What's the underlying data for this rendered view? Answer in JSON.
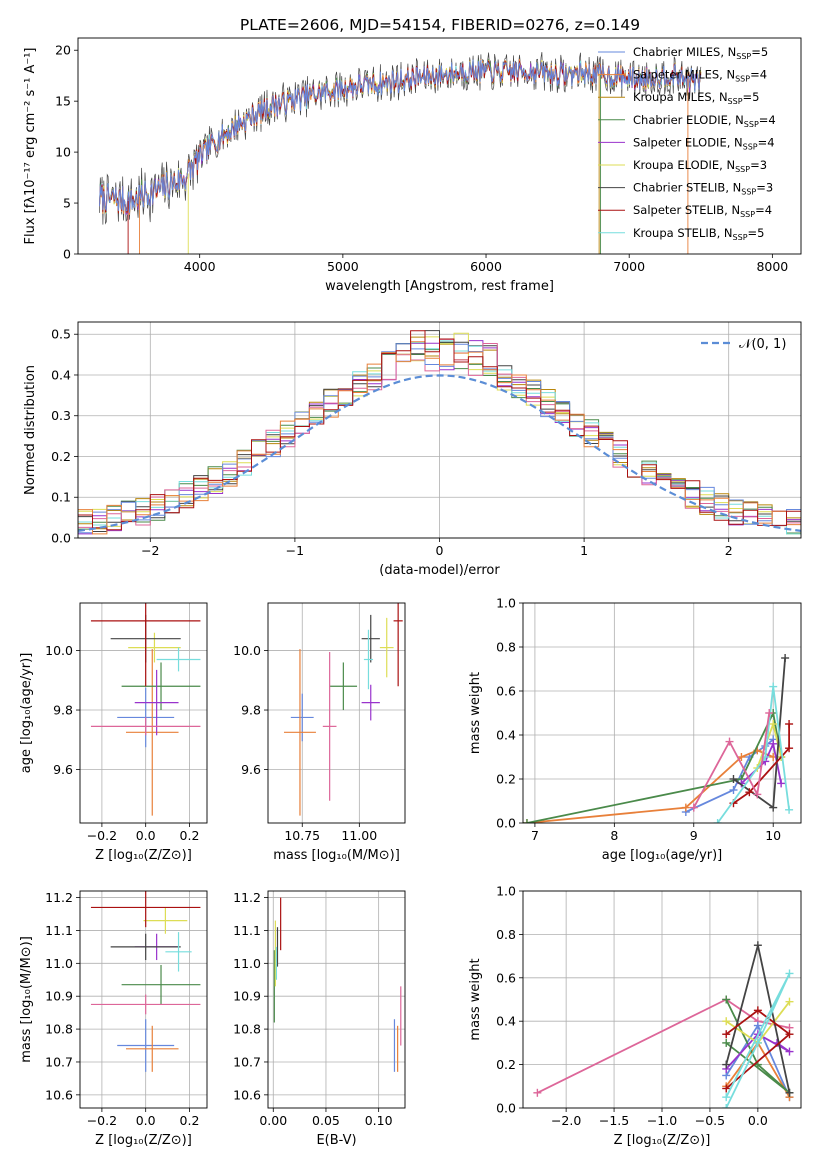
{
  "title": "PLATE=2606, MJD=54154, FIBERID=0276, z=0.149",
  "colors": {
    "series": [
      "#6688dd",
      "#e8803a",
      "#b8860b",
      "#4a8a4a",
      "#9933cc",
      "#dddd55",
      "#444444",
      "#aa1111",
      "#77dddd",
      "#dd6699"
    ],
    "grid": "#b0b0b0",
    "gauss": "#5b8dd6"
  },
  "chart_data": [
    {
      "id": "spectrum",
      "type": "line",
      "xlabel": "wavelength [Angstrom, rest frame]",
      "ylabel": "Flux [fλ10⁻¹⁷ erg cm⁻² s⁻¹ A⁻¹]",
      "xlim": [
        3150,
        8200
      ],
      "ylim": [
        0,
        21.2
      ],
      "xticks": [
        4000,
        5000,
        6000,
        7000,
        8000
      ],
      "yticks": [
        0,
        5,
        10,
        15,
        20
      ],
      "grid": false,
      "legend_position": "top-right",
      "trend": {
        "x": [
          3300,
          3500,
          3700,
          3900,
          4000,
          4100,
          4300,
          4500,
          4700,
          4900,
          5100,
          5300,
          5500,
          5700,
          5900,
          6100,
          6300,
          6500,
          6700,
          6900,
          7100,
          7300,
          7500
        ],
        "y": [
          5.5,
          5.2,
          6.2,
          7.5,
          9.5,
          11.0,
          13.0,
          14.5,
          15.3,
          16.0,
          16.5,
          16.8,
          17.3,
          17.6,
          18.0,
          17.8,
          18.0,
          17.6,
          17.8,
          17.4,
          17.2,
          17.6,
          16.8
        ]
      },
      "series": [
        {
          "label": "Chabrier MILES, N<sub>SSP</sub>=5"
        },
        {
          "label": "Salpeter MILES, N<sub>SSP</sub>=4"
        },
        {
          "label": "Kroupa MILES, N<sub>SSP</sub>=5"
        },
        {
          "label": "Chabrier ELODIE, N<sub>SSP</sub>=4"
        },
        {
          "label": "Salpeter ELODIE, N<sub>SSP</sub>=4"
        },
        {
          "label": "Kroupa ELODIE, N<sub>SSP</sub>=3"
        },
        {
          "label": "Chabrier STELIB, N<sub>SSP</sub>=3"
        },
        {
          "label": "Salpeter STELIB, N<sub>SSP</sub>=4"
        },
        {
          "label": "Kroupa STELIB, N<sub>SSP</sub>=5"
        }
      ]
    },
    {
      "id": "residuals",
      "type": "bar",
      "xlabel": "(data-model)/error",
      "ylabel": "Normed distribution",
      "xlim": [
        -2.5,
        2.5
      ],
      "ylim": [
        0,
        0.53
      ],
      "xticks": [
        -2,
        -1,
        0,
        1,
        2
      ],
      "yticks": [
        0.0,
        0.1,
        0.2,
        0.3,
        0.4,
        0.5
      ],
      "grid": true,
      "legend_position": "top-right",
      "gaussian_label": "𝒩(0, 1)",
      "bin_width": 0.1
    },
    {
      "id": "age-vs-Z",
      "type": "scatter",
      "xlabel": "Z [log₁₀(Z/Z⊙)]",
      "ylabel": "age  [log₁₀(age/yr)]",
      "xlim": [
        -0.3,
        0.28
      ],
      "ylim": [
        9.42,
        10.16
      ],
      "xticks": [
        -0.2,
        0.0,
        0.2
      ],
      "xtick_labels": [
        "−0.2",
        "0.0",
        "0.2"
      ],
      "yticks": [
        9.6,
        9.8,
        10.0
      ],
      "ytick_labels": [
        "9.6",
        "9.8",
        "10.0"
      ],
      "grid": true,
      "points": [
        {
          "c": 0,
          "x": 0.0,
          "y": 9.775,
          "xerr": 0.13,
          "yerr": 0.1
        },
        {
          "c": 1,
          "x": 0.03,
          "y": 9.725,
          "xerr": 0.12,
          "yerr": 0.28
        },
        {
          "c": 3,
          "x": 0.07,
          "y": 9.88,
          "xerr": 0.18,
          "yerr": 0.08
        },
        {
          "c": 4,
          "x": 0.05,
          "y": 9.825,
          "xerr": 0.1,
          "yerr": 0.11
        },
        {
          "c": 5,
          "x": 0.04,
          "y": 10.01,
          "xerr": 0.12,
          "yerr": 0.05
        },
        {
          "c": 6,
          "x": 0.0,
          "y": 10.04,
          "xerr": 0.16,
          "yerr": 0.08
        },
        {
          "c": 7,
          "x": 0.0,
          "y": 10.1,
          "xerr": 0.25,
          "yerr": 0.22
        },
        {
          "c": 8,
          "x": 0.15,
          "y": 9.97,
          "xerr": 0.1,
          "yerr": 0.04
        },
        {
          "c": 9,
          "x": 0.0,
          "y": 9.745,
          "xerr": 0.25,
          "yerr": 0.03
        }
      ]
    },
    {
      "id": "age-vs-mass",
      "type": "scatter",
      "xlabel": "mass [log₁₀(M/M⊙)]",
      "ylabel": "",
      "xlim": [
        10.6,
        11.2
      ],
      "ylim": [
        9.42,
        10.16
      ],
      "xticks": [
        10.75,
        11.0
      ],
      "xtick_labels": [
        "10.75",
        "11.00"
      ],
      "yticks": [
        9.6,
        9.8,
        10.0
      ],
      "ytick_labels": [
        "9.6",
        "9.8",
        "10.0"
      ],
      "grid": true,
      "points": [
        {
          "c": 0,
          "x": 10.75,
          "y": 9.775,
          "xerr": 0.05,
          "yerr": 0.08
        },
        {
          "c": 1,
          "x": 10.74,
          "y": 9.725,
          "xerr": 0.07,
          "yerr": 0.28
        },
        {
          "c": 3,
          "x": 10.93,
          "y": 9.88,
          "xerr": 0.06,
          "yerr": 0.08
        },
        {
          "c": 4,
          "x": 11.05,
          "y": 9.825,
          "xerr": 0.04,
          "yerr": 0.06
        },
        {
          "c": 5,
          "x": 11.12,
          "y": 10.01,
          "xerr": 0.03,
          "yerr": 0.1
        },
        {
          "c": 6,
          "x": 11.05,
          "y": 10.04,
          "xerr": 0.04,
          "yerr": 0.08
        },
        {
          "c": 7,
          "x": 11.17,
          "y": 10.1,
          "xerr": 0.02,
          "yerr": 0.22
        },
        {
          "c": 8,
          "x": 11.04,
          "y": 9.97,
          "xerr": 0.02,
          "yerr": 0.1
        },
        {
          "c": 9,
          "x": 10.87,
          "y": 9.745,
          "xerr": 0.03,
          "yerr": 0.25
        }
      ]
    },
    {
      "id": "mass-weight-vs-age",
      "type": "line",
      "xlabel": "age  [log₁₀(age/yr)]",
      "ylabel": "mass weight",
      "xlim": [
        6.85,
        10.35
      ],
      "ylim": [
        0,
        1.0
      ],
      "xticks": [
        7,
        8,
        9,
        10
      ],
      "xtick_labels": [
        "7",
        "8",
        "9",
        "10"
      ],
      "yticks": [
        0,
        0.2,
        0.4,
        0.6,
        0.8,
        1.0
      ],
      "ytick_labels": [
        "0.0",
        "0.2",
        "0.4",
        "0.6",
        "0.8",
        "1.0"
      ],
      "grid": true,
      "series": [
        {
          "c": 0,
          "x": [
            8.9,
            9.5,
            9.7,
            9.9,
            10.0
          ],
          "y": [
            0.05,
            0.15,
            0.3,
            0.35,
            0.38
          ]
        },
        {
          "c": 1,
          "x": [
            6.9,
            8.9,
            9.6,
            9.8,
            10.0
          ],
          "y": [
            0.0,
            0.07,
            0.3,
            0.33,
            0.3
          ]
        },
        {
          "c": 3,
          "x": [
            6.9,
            9.6,
            10.0,
            10.1
          ],
          "y": [
            0.0,
            0.2,
            0.5,
            0.3
          ]
        },
        {
          "c": 4,
          "x": [
            9.6,
            9.9,
            10.0,
            10.1
          ],
          "y": [
            0.18,
            0.28,
            0.36,
            0.18
          ]
        },
        {
          "c": 5,
          "x": [
            9.8,
            10.0,
            10.1
          ],
          "y": [
            0.25,
            0.45,
            0.3
          ]
        },
        {
          "c": 6,
          "x": [
            9.5,
            10.0,
            10.15
          ],
          "y": [
            0.2,
            0.07,
            0.75
          ]
        },
        {
          "c": 7,
          "x": [
            9.5,
            9.7,
            10.2,
            10.2
          ],
          "y": [
            0.09,
            0.14,
            0.34,
            0.45
          ]
        },
        {
          "c": 8,
          "x": [
            9.3,
            9.9,
            10.0,
            10.2
          ],
          "y": [
            0.0,
            0.3,
            0.62,
            0.06
          ]
        },
        {
          "c": 9,
          "x": [
            9.0,
            9.45,
            9.8,
            9.95
          ],
          "y": [
            0.07,
            0.37,
            0.13,
            0.5
          ]
        }
      ]
    },
    {
      "id": "mass-vs-Z",
      "type": "scatter",
      "xlabel": "Z [log₁₀(Z/Z⊙)]",
      "ylabel": "mass [log₁₀(M/M⊙)]",
      "xlim": [
        -0.3,
        0.28
      ],
      "ylim": [
        10.56,
        11.22
      ],
      "xticks": [
        -0.2,
        0.0,
        0.2
      ],
      "xtick_labels": [
        "−0.2",
        "0.0",
        "0.2"
      ],
      "yticks": [
        10.6,
        10.7,
        10.8,
        10.9,
        11.0,
        11.1,
        11.2
      ],
      "ytick_labels": [
        "10.6",
        "10.7",
        "10.8",
        "10.9",
        "11.0",
        "11.1",
        "11.2"
      ],
      "grid": true,
      "points": [
        {
          "c": 0,
          "x": 0.0,
          "y": 10.75,
          "xerr": 0.13,
          "yerr": 0.08
        },
        {
          "c": 1,
          "x": 0.03,
          "y": 10.74,
          "xerr": 0.12,
          "yerr": 0.07
        },
        {
          "c": 3,
          "x": 0.07,
          "y": 10.935,
          "xerr": 0.18,
          "yerr": 0.06
        },
        {
          "c": 4,
          "x": 0.05,
          "y": 11.05,
          "xerr": 0.1,
          "yerr": 0.04
        },
        {
          "c": 5,
          "x": 0.09,
          "y": 11.13,
          "xerr": 0.1,
          "yerr": 0.04
        },
        {
          "c": 6,
          "x": 0.0,
          "y": 11.05,
          "xerr": 0.16,
          "yerr": 0.04
        },
        {
          "c": 7,
          "x": 0.0,
          "y": 11.17,
          "xerr": 0.25,
          "yerr": 0.06
        },
        {
          "c": 8,
          "x": 0.15,
          "y": 11.035,
          "xerr": 0.06,
          "yerr": 0.06
        },
        {
          "c": 9,
          "x": 0.0,
          "y": 10.875,
          "xerr": 0.25,
          "yerr": 0.03
        }
      ]
    },
    {
      "id": "mass-vs-EBV",
      "type": "scatter",
      "xlabel": "E(B-V)",
      "ylabel": "",
      "xlim": [
        -0.005,
        0.125
      ],
      "ylim": [
        10.56,
        11.22
      ],
      "xticks": [
        0.0,
        0.05,
        0.1
      ],
      "xtick_labels": [
        "0.00",
        "0.05",
        "0.10"
      ],
      "yticks": [
        10.6,
        10.7,
        10.8,
        10.9,
        11.0,
        11.1,
        11.2
      ],
      "ytick_labels": [
        "10.6",
        "10.7",
        "10.8",
        "10.9",
        "11.0",
        "11.1",
        "11.2"
      ],
      "grid": true,
      "points": [
        {
          "c": 0,
          "x": 0.115,
          "y": 10.75,
          "xerr": 0.0,
          "yerr": 0.08
        },
        {
          "c": 1,
          "x": 0.118,
          "y": 10.74,
          "xerr": 0.0,
          "yerr": 0.07
        },
        {
          "c": 3,
          "x": 0.001,
          "y": 10.93,
          "xerr": 0.0,
          "yerr": 0.11
        },
        {
          "c": 5,
          "x": 0.002,
          "y": 11.03,
          "xerr": 0.0,
          "yerr": 0.1
        },
        {
          "c": 6,
          "x": 0.004,
          "y": 11.05,
          "xerr": 0.0,
          "yerr": 0.06
        },
        {
          "c": 7,
          "x": 0.007,
          "y": 11.12,
          "xerr": 0.0,
          "yerr": 0.08
        },
        {
          "c": 8,
          "x": 0.003,
          "y": 11.0,
          "xerr": 0.0,
          "yerr": 0.05
        },
        {
          "c": 9,
          "x": 0.121,
          "y": 10.84,
          "xerr": 0.0,
          "yerr": 0.09
        }
      ]
    },
    {
      "id": "mass-weight-vs-Z",
      "type": "line",
      "xlabel": "Z [log₁₀(Z/Z⊙)]",
      "ylabel": "mass weight",
      "xlim": [
        -2.45,
        0.45
      ],
      "ylim": [
        0,
        1.0
      ],
      "xticks": [
        -2.0,
        -1.5,
        -1.0,
        -0.5,
        0.0
      ],
      "xtick_labels": [
        "−2.0",
        "−1.5",
        "−1.0",
        "−0.5",
        "0.0"
      ],
      "yticks": [
        0,
        0.2,
        0.4,
        0.6,
        0.8,
        1.0
      ],
      "ytick_labels": [
        "0.0",
        "0.2",
        "0.4",
        "0.6",
        "0.8",
        "1.0"
      ],
      "grid": true,
      "series": [
        {
          "c": 9,
          "x": [
            -2.3,
            -0.33,
            0.0,
            0.33
          ],
          "y": [
            0.07,
            0.5,
            0.4,
            0.37
          ]
        },
        {
          "c": 0,
          "x": [
            -0.33,
            0.0,
            0.33
          ],
          "y": [
            0.15,
            0.38,
            0.05
          ]
        },
        {
          "c": 1,
          "x": [
            -0.33,
            0.0,
            0.33
          ],
          "y": [
            0.1,
            0.3,
            0.05
          ]
        },
        {
          "c": 3,
          "x": [
            -0.33,
            0.0,
            0.33,
            -0.33
          ],
          "y": [
            0.5,
            0.2,
            0.07,
            0.3
          ]
        },
        {
          "c": 4,
          "x": [
            -0.33,
            0.0,
            0.33,
            0.2
          ],
          "y": [
            0.18,
            0.34,
            0.26,
            0.3
          ]
        },
        {
          "c": 5,
          "x": [
            -0.33,
            0.0,
            0.33
          ],
          "y": [
            0.4,
            0.3,
            0.49
          ]
        },
        {
          "c": 6,
          "x": [
            -0.33,
            0.0,
            0.33
          ],
          "y": [
            0.2,
            0.75,
            0.07
          ]
        },
        {
          "c": 7,
          "x": [
            -0.33,
            0.0,
            0.33,
            -0.33
          ],
          "y": [
            0.34,
            0.45,
            0.34,
            0.09
          ]
        },
        {
          "c": 8,
          "x": [
            -0.33,
            0.0,
            0.33,
            -0.33
          ],
          "y": [
            0.0,
            0.3,
            0.62,
            0.05
          ]
        }
      ]
    }
  ]
}
